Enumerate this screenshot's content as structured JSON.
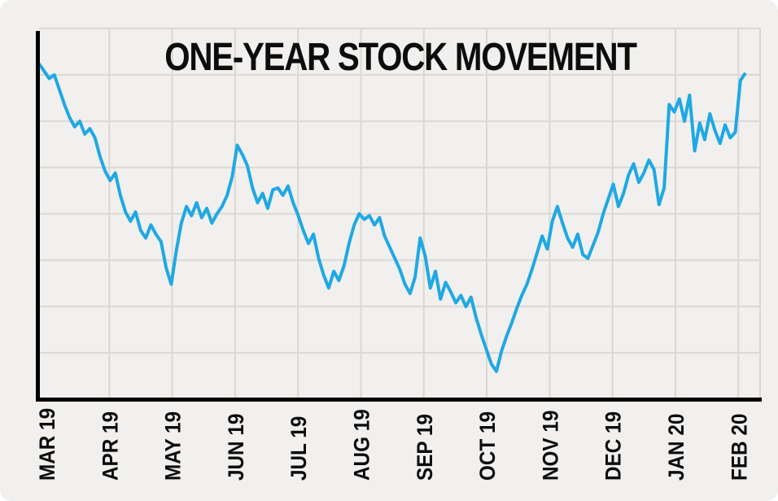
{
  "chart_data": {
    "type": "line",
    "title": "ONE-YEAR STOCK MOVEMENT",
    "xlabel": "",
    "ylabel": "",
    "categories": [
      "MAR 19",
      "APR 19",
      "MAY 19",
      "JUN 19",
      "JUL 19",
      "AUG 19",
      "SEP 19",
      "OCT 19",
      "NOV 19",
      "DEC 19",
      "JAN 20",
      "FEB 20"
    ],
    "values": [
      90.5,
      88.5,
      86.5,
      87.5,
      83.5,
      79.5,
      76.0,
      73.5,
      75.0,
      71.5,
      73.0,
      70.5,
      65.5,
      61.5,
      59.0,
      61.0,
      55.0,
      50.5,
      48.0,
      50.5,
      45.5,
      43.5,
      47.0,
      44.5,
      42.5,
      35.5,
      31.0,
      40.0,
      47.5,
      52.0,
      49.5,
      53.0,
      49.0,
      51.5,
      47.5,
      50.0,
      52.0,
      55.0,
      60.0,
      68.5,
      66.0,
      63.0,
      57.0,
      53.0,
      55.5,
      51.5,
      56.5,
      57.0,
      55.0,
      57.5,
      53.0,
      49.5,
      45.5,
      42.0,
      44.5,
      38.0,
      33.5,
      30.0,
      34.5,
      32.0,
      36.0,
      42.0,
      47.0,
      50.0,
      48.5,
      49.5,
      47.0,
      49.0,
      44.0,
      41.0,
      38.0,
      35.0,
      31.0,
      28.5,
      33.0,
      43.5,
      38.5,
      30.0,
      34.5,
      27.0,
      31.5,
      29.0,
      26.0,
      28.0,
      25.0,
      27.5,
      22.0,
      17.5,
      13.5,
      9.5,
      7.5,
      13.0,
      17.0,
      20.5,
      24.5,
      28.0,
      31.0,
      35.0,
      39.5,
      44.0,
      40.5,
      48.0,
      52.0,
      47.5,
      43.5,
      41.0,
      44.5,
      39.0,
      38.0,
      41.5,
      45.0,
      50.0,
      54.0,
      58.0,
      52.0,
      55.5,
      60.5,
      63.5,
      58.5,
      61.0,
      64.5,
      62.0,
      52.5,
      57.0,
      79.5,
      77.5,
      81.0,
      75.0,
      82.0,
      67.0,
      74.5,
      70.0,
      77.0,
      72.5,
      69.0,
      74.0,
      70.5,
      72.0,
      86.0,
      88.0
    ],
    "ylim": [
      0,
      100
    ],
    "grid": true,
    "legend": false,
    "line_color": "#1fa8e4",
    "background_color": "#f1f0ee",
    "gridline_color": "#d9d8d3",
    "axis_color": "#000000",
    "title_color": "#0d0d0d"
  }
}
